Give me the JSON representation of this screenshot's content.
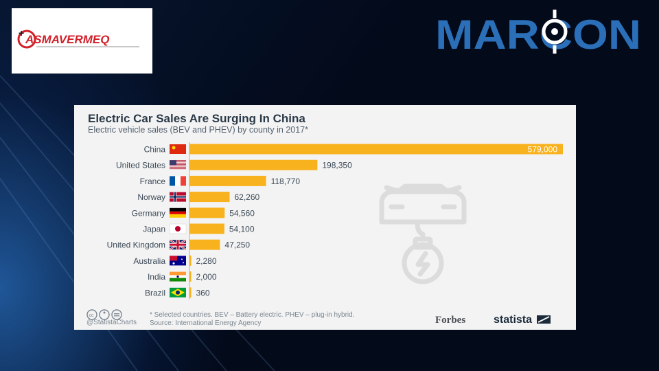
{
  "branding": {
    "left_logo_text": "ASMAVERMEQ",
    "right_logo_text": "MARCON",
    "colors": {
      "asmavermeq_red": "#d2202a",
      "marcon_blue": "#2a6fb8"
    }
  },
  "chart_data": {
    "type": "bar",
    "orientation": "horizontal",
    "title": "Electric Car Sales Are Surging In China",
    "subtitle": "Electric vehicle sales (BEV and PHEV) by county in 2017*",
    "categories": [
      "China",
      "United States",
      "France",
      "Norway",
      "Germany",
      "Japan",
      "United Kingdom",
      "Australia",
      "India",
      "Brazil"
    ],
    "values": [
      579000,
      198350,
      118770,
      62260,
      54560,
      54100,
      47250,
      2280,
      2000,
      360
    ],
    "value_labels": [
      "579,000",
      "198,350",
      "118,770",
      "62,260",
      "54,560",
      "54,100",
      "47,250",
      "2,280",
      "2,000",
      "360"
    ],
    "bar_color": "#f8b21e",
    "xlim": [
      0,
      579000
    ],
    "grid": false,
    "footnote": "* Selected countries. BEV – Battery electric. PHEV – plug-in hybrid.",
    "source": "Source: International Energy Agency",
    "credit": "@StatistaCharts",
    "publishers": [
      "Forbes",
      "statista"
    ]
  }
}
